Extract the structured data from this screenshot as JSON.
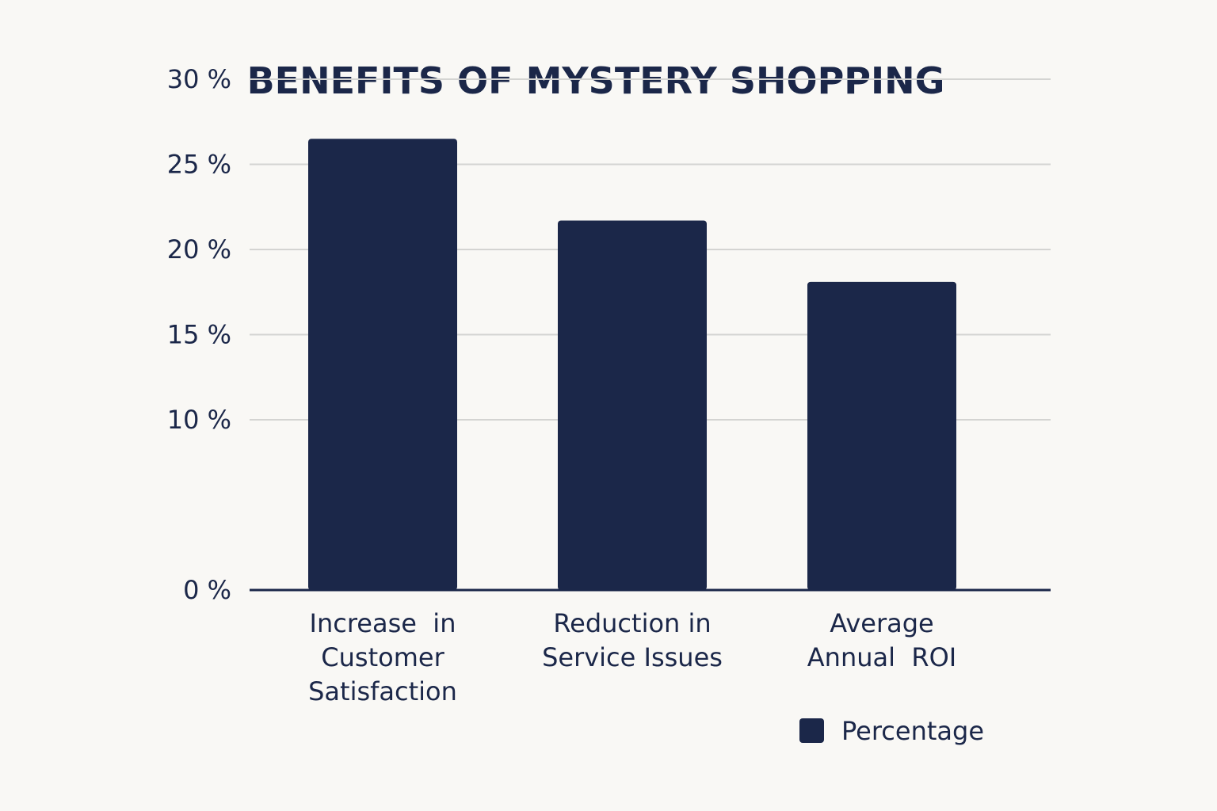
{
  "chart_data": {
    "type": "bar",
    "title": "BENEFITS OF MYSTERY SHOPPING",
    "categories": [
      [
        "Increase  in",
        "Customer",
        "Satisfaction"
      ],
      [
        "Reduction in",
        "Service Issues"
      ],
      [
        "Average",
        "Annual  ROI"
      ]
    ],
    "series": [
      {
        "name": "Percentage",
        "values": [
          26.5,
          21.7,
          18.1
        ],
        "color": "#1b2749"
      }
    ],
    "y_ticks": [
      {
        "value": 0,
        "label": "0 %"
      },
      {
        "value": 10,
        "label": "10 %"
      },
      {
        "value": 15,
        "label": "15 %"
      },
      {
        "value": 20,
        "label": "20 %"
      },
      {
        "value": 25,
        "label": "25 %"
      },
      {
        "value": 30,
        "label": "30 %"
      }
    ],
    "ylim": [
      0,
      30
    ],
    "grid": true,
    "legend_position": "bottom-right",
    "colors": {
      "background": "#f9f8f5",
      "bar": "#1b2749",
      "text": "#1b2749",
      "grid": "#d4d4d2",
      "axis": "#1b2749"
    }
  }
}
